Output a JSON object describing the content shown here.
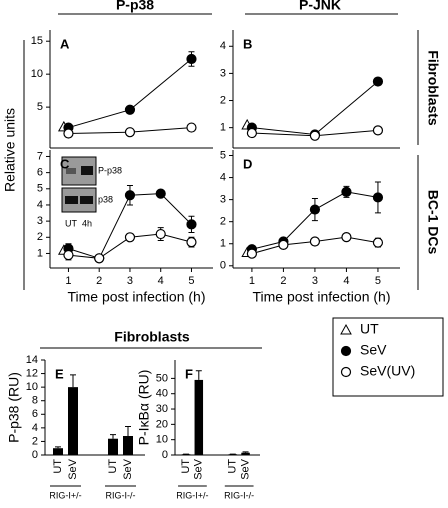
{
  "figure": {
    "column_titles": [
      "P-p38",
      "P-JNK"
    ],
    "row_titles": [
      "Fibroblasts",
      "BC-1 DCs"
    ],
    "y_label": "Relative units",
    "section_title": "Fibroblasts"
  },
  "chart_data": [
    {
      "type": "line",
      "panel": "A",
      "xlim": [
        0.4,
        5.7
      ],
      "ylim": [
        -1.2,
        16.7
      ],
      "yticks": [
        5,
        10,
        15
      ],
      "series": [
        {
          "name": "UT",
          "marker": "triangle",
          "color": "#000000",
          "fill": "#ffffff",
          "x": [
            0.85
          ],
          "values": [
            2.0
          ]
        },
        {
          "name": "SeV",
          "marker": "circle",
          "color": "#000000",
          "fill": "#000000",
          "x": [
            1,
            3,
            5
          ],
          "values": [
            1.9,
            4.6,
            12.3
          ],
          "errors": [
            0.4,
            0.4,
            1.1
          ]
        },
        {
          "name": "SeV(UV)",
          "marker": "circle",
          "color": "#000000",
          "fill": "#ffffff",
          "x": [
            1,
            3,
            5
          ],
          "values": [
            1.0,
            1.2,
            1.9
          ],
          "errors": [
            0.2,
            0.2,
            0.4
          ]
        }
      ]
    },
    {
      "type": "line",
      "panel": "B",
      "xlim": [
        0.4,
        5.7
      ],
      "ylim": [
        0.25,
        4.6
      ],
      "yticks": [
        1,
        2,
        3,
        4
      ],
      "series": [
        {
          "name": "UT",
          "marker": "triangle",
          "color": "#000000",
          "fill": "#ffffff",
          "x": [
            0.85
          ],
          "values": [
            1.1
          ]
        },
        {
          "name": "SeV",
          "marker": "circle",
          "color": "#000000",
          "fill": "#000000",
          "x": [
            1,
            3,
            5
          ],
          "values": [
            1.0,
            0.75,
            2.7
          ]
        },
        {
          "name": "SeV(UV)",
          "marker": "circle",
          "color": "#000000",
          "fill": "#ffffff",
          "x": [
            1,
            3,
            5
          ],
          "values": [
            0.8,
            0.7,
            0.9
          ]
        }
      ]
    },
    {
      "type": "line",
      "panel": "C",
      "xlim": [
        0.4,
        5.7
      ],
      "ylim": [
        0.1,
        7.4
      ],
      "yticks": [
        1,
        2,
        3,
        4,
        5,
        6,
        7
      ],
      "xticks": [
        1,
        2,
        3,
        4,
        5
      ],
      "xlabel": "Time post infection (h)",
      "inset": {
        "bands": [
          "P-p38",
          "p38"
        ],
        "lanes": [
          "UT",
          "4h"
        ]
      },
      "series": [
        {
          "name": "UT",
          "marker": "triangle",
          "color": "#000000",
          "fill": "#ffffff",
          "x": [
            0.85
          ],
          "values": [
            1.2
          ]
        },
        {
          "name": "SeV",
          "marker": "circle",
          "color": "#000000",
          "fill": "#000000",
          "x": [
            1,
            2,
            3,
            4,
            5
          ],
          "values": [
            1.3,
            0.7,
            4.6,
            4.7,
            2.8
          ],
          "errors": [
            0.3,
            0.1,
            0.6,
            0.2,
            0.5
          ]
        },
        {
          "name": "SeV(UV)",
          "marker": "circle",
          "color": "#000000",
          "fill": "#ffffff",
          "x": [
            1,
            2,
            3,
            4,
            5
          ],
          "values": [
            0.9,
            0.7,
            2.0,
            2.2,
            1.7
          ],
          "errors": [
            0.3,
            0.1,
            0.2,
            0.4,
            0.3
          ]
        }
      ]
    },
    {
      "type": "line",
      "panel": "D",
      "xlim": [
        0.4,
        5.7
      ],
      "ylim": [
        -0.1,
        5.25
      ],
      "yticks": [
        0,
        1,
        2,
        3,
        4,
        5
      ],
      "xticks": [
        1,
        2,
        3,
        4,
        5
      ],
      "xlabel": "Time post infection (h)",
      "series": [
        {
          "name": "UT",
          "marker": "triangle",
          "color": "#000000",
          "fill": "#ffffff",
          "x": [
            0.85
          ],
          "values": [
            0.6
          ]
        },
        {
          "name": "SeV",
          "marker": "circle",
          "color": "#000000",
          "fill": "#000000",
          "x": [
            1,
            2,
            3,
            4,
            5
          ],
          "values": [
            0.75,
            1.1,
            2.55,
            3.35,
            3.1
          ],
          "errors": [
            0.05,
            0.1,
            0.5,
            0.25,
            0.7
          ]
        },
        {
          "name": "SeV(UV)",
          "marker": "circle",
          "color": "#000000",
          "fill": "#ffffff",
          "x": [
            1,
            2,
            3,
            4,
            5
          ],
          "values": [
            0.55,
            0.95,
            1.1,
            1.3,
            1.05
          ],
          "errors": [
            0.05,
            0.1,
            0.1,
            0.1,
            0.2
          ]
        }
      ]
    },
    {
      "type": "bar",
      "panel": "E",
      "ylabel": "P-p38 (RU)",
      "ylim": [
        0,
        14
      ],
      "yticks": [
        0,
        2,
        4,
        6,
        8,
        10,
        12,
        14
      ],
      "color": "#000000",
      "categories": [
        "UT",
        "SeV",
        "UT",
        "SeV"
      ],
      "groups": [
        "RIG-I+/-",
        "RIG-I-/-"
      ],
      "values": [
        1.0,
        10.0,
        2.4,
        2.8
      ],
      "errors": [
        0.2,
        1.8,
        0.6,
        1.4
      ]
    },
    {
      "type": "bar",
      "panel": "F",
      "ylabel": "P-IκBα (RU)",
      "ylim": [
        0,
        62
      ],
      "yticks": [
        0,
        10,
        20,
        30,
        40,
        50
      ],
      "color": "#000000",
      "categories": [
        "UT",
        "SeV",
        "UT",
        "SeV"
      ],
      "groups": [
        "RIG-I+/-",
        "RIG-I-/-"
      ],
      "values": [
        0.5,
        49,
        0.5,
        1.5
      ],
      "errors": [
        0.1,
        6,
        0.1,
        0.5
      ]
    }
  ]
}
